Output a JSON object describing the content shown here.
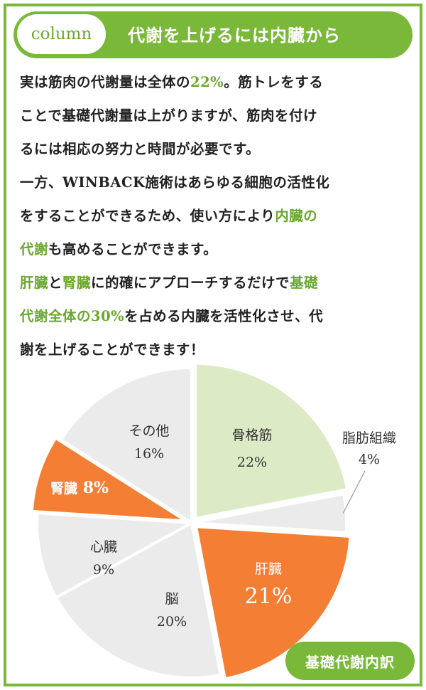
{
  "header": {
    "tag": "column",
    "title": "代謝を上げるには内臓から"
  },
  "body_lines": [
    [
      {
        "t": "実は筋肉の代謝量は全体の"
      },
      {
        "t": "22%",
        "h": true
      },
      {
        "t": "。筋トレをする"
      }
    ],
    [
      {
        "t": "ことで基礎代謝量は上がりますが、筋肉を付け"
      }
    ],
    [
      {
        "t": "るには相応の努力と時間が必要です。"
      }
    ],
    [
      {
        "t": "一方、WINBACK施術はあらゆる細胞の活性化"
      }
    ],
    [
      {
        "t": "をすることができるため、使い方により"
      },
      {
        "t": "内臓の",
        "h": true
      }
    ],
    [
      {
        "t": "代謝",
        "h": true
      },
      {
        "t": "も高めることができます。"
      }
    ],
    [
      {
        "t": "肝臓",
        "h": true
      },
      {
        "t": "と"
      },
      {
        "t": "腎臓",
        "h": true
      },
      {
        "t": "に的確にアプローチするだけで"
      },
      {
        "t": "基礎",
        "h": true
      }
    ],
    [
      {
        "t": "代謝全体の30%",
        "h": true
      },
      {
        "t": "を占める内臓を活性化させ、代"
      }
    ],
    [
      {
        "t": "謝を上げることができます！"
      }
    ]
  ],
  "colors": {
    "accent": "#7ab83a",
    "highlight": "#6aa82c",
    "orange": "#f57e35",
    "light_green": "#dcebc6",
    "gray": "#ebebeb"
  },
  "chart_data": {
    "type": "pie",
    "title": "基礎代謝内訳",
    "slices": [
      {
        "label": "骨格筋",
        "value": 22,
        "display": "22%",
        "color": "#dcebc6",
        "exploded": true
      },
      {
        "label": "脂肪組織",
        "value": 4,
        "display": "4%",
        "color": "#ebebeb",
        "exploded": false,
        "callout": true
      },
      {
        "label": "肝臓",
        "value": 21,
        "display": "21%",
        "color": "#f57e35",
        "exploded": true
      },
      {
        "label": "脳",
        "value": 20,
        "display": "20%",
        "color": "#ebebeb",
        "exploded": false
      },
      {
        "label": "心臓",
        "value": 9,
        "display": "9%",
        "color": "#ebebeb",
        "exploded": false
      },
      {
        "label": "腎臓",
        "value": 8,
        "display": "8%",
        "color": "#f57e35",
        "exploded": true
      },
      {
        "label": "その他",
        "value": 16,
        "display": "16%",
        "color": "#ebebeb",
        "exploded": false
      }
    ]
  }
}
